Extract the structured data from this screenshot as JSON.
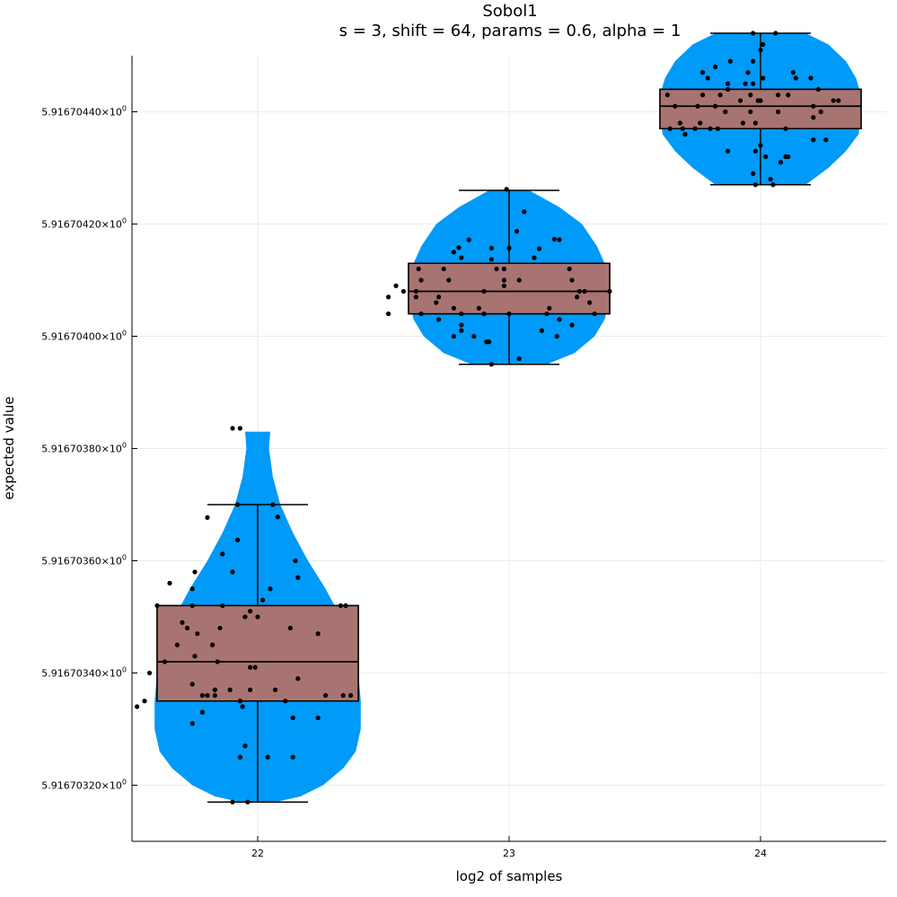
{
  "chart_data": {
    "type": "violin-box-scatter",
    "title": "Sobol1",
    "subtitle": "s = 3, shift = 64, params = 0.6, alpha = 1",
    "xlabel": "log2 of samples",
    "ylabel": "expected value",
    "x_ticks": [
      "22",
      "23",
      "24"
    ],
    "xlim": [
      21.5,
      24.5
    ],
    "y_ticks": [
      {
        "value": 5.9167032,
        "mantissa": "5.91670320",
        "suffix": "×10",
        "exp": "0"
      },
      {
        "value": 5.9167034,
        "mantissa": "5.91670340",
        "suffix": "×10",
        "exp": "0"
      },
      {
        "value": 5.9167036,
        "mantissa": "5.91670360",
        "suffix": "×10",
        "exp": "0"
      },
      {
        "value": 5.9167038,
        "mantissa": "5.91670380",
        "suffix": "×10",
        "exp": "0"
      },
      {
        "value": 5.916704,
        "mantissa": "5.91670400",
        "suffix": "×10",
        "exp": "0"
      },
      {
        "value": 5.9167042,
        "mantissa": "5.91670420",
        "suffix": "×10",
        "exp": "0"
      },
      {
        "value": 5.9167044,
        "mantissa": "5.91670440",
        "suffix": "×10",
        "exp": "0"
      }
    ],
    "ylim": [
      5.9167031,
      5.9167045
    ],
    "grid": true,
    "legend": "none",
    "colors": {
      "violin": "#009af9",
      "box": "#e26f46",
      "box_overlap": "#a87471",
      "points": "#000000",
      "lines": "#000000"
    },
    "groups": [
      {
        "x": 22,
        "box": {
          "whisker_low": 5.91670317,
          "q1": 5.91670335,
          "median": 5.91670342,
          "q3": 5.91670352,
          "whisker_high": 5.9167037
        },
        "violin": [
          [
            5.91670317,
            0.07
          ],
          [
            5.91670318,
            0.17
          ],
          [
            5.9167032,
            0.26
          ],
          [
            5.91670323,
            0.34
          ],
          [
            5.91670326,
            0.39
          ],
          [
            5.9167033,
            0.41
          ],
          [
            5.91670335,
            0.41
          ],
          [
            5.9167034,
            0.4
          ],
          [
            5.91670345,
            0.37
          ],
          [
            5.9167035,
            0.33
          ],
          [
            5.91670355,
            0.27
          ],
          [
            5.9167036,
            0.2
          ],
          [
            5.91670365,
            0.14
          ],
          [
            5.9167037,
            0.09
          ],
          [
            5.91670375,
            0.06
          ],
          [
            5.9167038,
            0.045
          ],
          [
            5.91670383,
            0.05
          ]
        ],
        "points": [
          [
            21.9,
            5.916703836
          ],
          [
            21.93,
            5.916703836
          ],
          [
            21.92,
            5.9167037
          ],
          [
            22.06,
            5.9167037
          ],
          [
            21.8,
            5.916703677
          ],
          [
            22.08,
            5.916703678
          ],
          [
            21.92,
            5.916703637
          ],
          [
            21.86,
            5.916703612
          ],
          [
            22.15,
            5.9167036
          ],
          [
            21.75,
            5.91670358
          ],
          [
            21.9,
            5.91670358
          ],
          [
            22.16,
            5.91670357
          ],
          [
            21.65,
            5.91670356
          ],
          [
            21.74,
            5.91670355
          ],
          [
            22.05,
            5.91670355
          ],
          [
            22.02,
            5.91670353
          ],
          [
            21.86,
            5.91670352
          ],
          [
            21.6,
            5.91670352
          ],
          [
            21.74,
            5.91670352
          ],
          [
            22.33,
            5.91670352
          ],
          [
            22.35,
            5.91670352
          ],
          [
            21.97,
            5.91670351
          ],
          [
            21.7,
            5.91670349
          ],
          [
            22.0,
            5.9167035
          ],
          [
            21.95,
            5.9167035
          ],
          [
            21.85,
            5.91670348
          ],
          [
            22.13,
            5.91670348
          ],
          [
            21.76,
            5.91670347
          ],
          [
            22.24,
            5.91670347
          ],
          [
            21.72,
            5.91670348
          ],
          [
            21.82,
            5.91670345
          ],
          [
            21.68,
            5.91670345
          ],
          [
            21.75,
            5.91670343
          ],
          [
            21.63,
            5.91670342
          ],
          [
            21.84,
            5.91670342
          ],
          [
            21.97,
            5.91670341
          ],
          [
            21.99,
            5.91670341
          ],
          [
            21.57,
            5.9167034
          ],
          [
            22.07,
            5.91670337
          ],
          [
            22.16,
            5.91670339
          ],
          [
            21.74,
            5.91670338
          ],
          [
            21.89,
            5.91670337
          ],
          [
            21.97,
            5.91670337
          ],
          [
            21.83,
            5.91670337
          ],
          [
            21.8,
            5.91670336
          ],
          [
            22.34,
            5.91670336
          ],
          [
            22.37,
            5.91670336
          ],
          [
            22.27,
            5.91670336
          ],
          [
            21.83,
            5.91670336
          ],
          [
            21.93,
            5.91670335
          ],
          [
            21.78,
            5.91670336
          ],
          [
            22.11,
            5.91670335
          ],
          [
            21.52,
            5.91670334
          ],
          [
            21.55,
            5.91670335
          ],
          [
            21.78,
            5.91670333
          ],
          [
            21.94,
            5.91670334
          ],
          [
            22.14,
            5.91670332
          ],
          [
            22.24,
            5.91670332
          ],
          [
            21.74,
            5.91670331
          ],
          [
            21.95,
            5.91670327
          ],
          [
            21.93,
            5.91670325
          ],
          [
            22.04,
            5.91670325
          ],
          [
            22.14,
            5.91670325
          ],
          [
            21.9,
            5.91670317
          ],
          [
            21.96,
            5.91670317
          ]
        ]
      },
      {
        "x": 23,
        "box": {
          "whisker_low": 5.91670395,
          "q1": 5.91670404,
          "median": 5.91670408,
          "q3": 5.91670413,
          "whisker_high": 5.91670426
        },
        "violin": [
          [
            5.91670395,
            0.15
          ],
          [
            5.91670397,
            0.26
          ],
          [
            5.916704,
            0.34
          ],
          [
            5.91670403,
            0.38
          ],
          [
            5.91670405,
            0.39
          ],
          [
            5.91670408,
            0.4
          ],
          [
            5.9167041,
            0.39
          ],
          [
            5.91670413,
            0.38
          ],
          [
            5.91670416,
            0.35
          ],
          [
            5.9167042,
            0.29
          ],
          [
            5.91670423,
            0.2
          ],
          [
            5.91670426,
            0.08
          ]
        ],
        "points": [
          [
            22.99,
            5.916704262
          ],
          [
            23.06,
            5.916704222
          ],
          [
            23.03,
            5.916704187
          ],
          [
            22.84,
            5.916704172
          ],
          [
            23.18,
            5.916704173
          ],
          [
            23.2,
            5.916704172
          ],
          [
            22.8,
            5.916704158
          ],
          [
            23.12,
            5.916704156
          ],
          [
            23.0,
            5.916704157
          ],
          [
            22.93,
            5.916704157
          ],
          [
            22.78,
            5.91670415
          ],
          [
            23.1,
            5.91670414
          ],
          [
            22.81,
            5.91670414
          ],
          [
            22.93,
            5.916704137
          ],
          [
            22.95,
            5.91670412
          ],
          [
            22.74,
            5.91670412
          ],
          [
            22.98,
            5.91670412
          ],
          [
            22.64,
            5.91670412
          ],
          [
            22.98,
            5.9167041
          ],
          [
            23.24,
            5.91670412
          ],
          [
            23.25,
            5.9167041
          ],
          [
            22.65,
            5.9167041
          ],
          [
            23.04,
            5.9167041
          ],
          [
            22.55,
            5.91670409
          ],
          [
            22.76,
            5.9167041
          ],
          [
            22.98,
            5.91670409
          ],
          [
            22.9,
            5.91670408
          ],
          [
            22.72,
            5.91670407
          ],
          [
            22.58,
            5.91670408
          ],
          [
            23.3,
            5.91670408
          ],
          [
            23.4,
            5.91670408
          ],
          [
            23.28,
            5.91670408
          ],
          [
            22.63,
            5.91670408
          ],
          [
            22.71,
            5.91670406
          ],
          [
            22.63,
            5.91670407
          ],
          [
            22.52,
            5.91670407
          ],
          [
            23.32,
            5.91670406
          ],
          [
            23.27,
            5.91670407
          ],
          [
            22.88,
            5.91670405
          ],
          [
            22.78,
            5.91670405
          ],
          [
            23.16,
            5.91670405
          ],
          [
            22.72,
            5.91670403
          ],
          [
            23.0,
            5.91670404
          ],
          [
            23.15,
            5.91670404
          ],
          [
            22.9,
            5.91670404
          ],
          [
            22.81,
            5.91670404
          ],
          [
            23.34,
            5.91670404
          ],
          [
            23.2,
            5.91670403
          ],
          [
            22.65,
            5.91670404
          ],
          [
            22.52,
            5.91670404
          ],
          [
            22.81,
            5.91670402
          ],
          [
            23.25,
            5.91670402
          ],
          [
            22.81,
            5.91670401
          ],
          [
            23.13,
            5.91670401
          ],
          [
            22.86,
            5.916704
          ],
          [
            23.19,
            5.916704
          ],
          [
            22.78,
            5.916704
          ],
          [
            22.92,
            5.91670399
          ],
          [
            22.91,
            5.91670399
          ],
          [
            23.04,
            5.91670396
          ],
          [
            22.93,
            5.91670395
          ]
        ]
      },
      {
        "x": 24,
        "box": {
          "whisker_low": 5.91670427,
          "q1": 5.91670437,
          "median": 5.91670441,
          "q3": 5.91670444,
          "whisker_high": 5.91670454
        },
        "violin": [
          [
            5.91670427,
            0.18
          ],
          [
            5.9167043,
            0.27
          ],
          [
            5.91670433,
            0.34
          ],
          [
            5.91670436,
            0.39
          ],
          [
            5.9167044,
            0.4
          ],
          [
            5.91670443,
            0.4
          ],
          [
            5.91670446,
            0.38
          ],
          [
            5.91670449,
            0.34
          ],
          [
            5.91670452,
            0.27
          ],
          [
            5.91670454,
            0.18
          ]
        ],
        "points": [
          [
            23.97,
            5.91670454
          ],
          [
            24.06,
            5.91670454
          ],
          [
            24.01,
            5.91670452
          ],
          [
            24.0,
            5.91670451
          ],
          [
            23.88,
            5.91670449
          ],
          [
            23.97,
            5.91670449
          ],
          [
            23.82,
            5.91670448
          ],
          [
            23.95,
            5.91670447
          ],
          [
            24.13,
            5.91670447
          ],
          [
            23.77,
            5.91670447
          ],
          [
            23.79,
            5.91670446
          ],
          [
            24.2,
            5.91670446
          ],
          [
            24.14,
            5.91670446
          ],
          [
            24.01,
            5.91670446
          ],
          [
            23.97,
            5.91670445
          ],
          [
            23.94,
            5.91670445
          ],
          [
            23.87,
            5.91670445
          ],
          [
            23.87,
            5.91670444
          ],
          [
            24.23,
            5.91670444
          ],
          [
            23.96,
            5.91670443
          ],
          [
            23.77,
            5.91670443
          ],
          [
            23.84,
            5.91670443
          ],
          [
            24.07,
            5.91670443
          ],
          [
            24.11,
            5.91670443
          ],
          [
            23.63,
            5.91670443
          ],
          [
            24.31,
            5.91670442
          ],
          [
            24.29,
            5.91670442
          ],
          [
            24.0,
            5.91670442
          ],
          [
            23.92,
            5.91670442
          ],
          [
            23.99,
            5.91670442
          ],
          [
            24.21,
            5.91670441
          ],
          [
            23.66,
            5.91670441
          ],
          [
            23.82,
            5.91670441
          ],
          [
            23.75,
            5.91670441
          ],
          [
            24.24,
            5.9167044
          ],
          [
            24.07,
            5.9167044
          ],
          [
            23.86,
            5.9167044
          ],
          [
            23.96,
            5.9167044
          ],
          [
            23.93,
            5.91670438
          ],
          [
            23.98,
            5.91670438
          ],
          [
            24.21,
            5.91670439
          ],
          [
            23.68,
            5.91670438
          ],
          [
            23.76,
            5.91670438
          ],
          [
            23.8,
            5.91670437
          ],
          [
            23.74,
            5.91670437
          ],
          [
            23.83,
            5.91670437
          ],
          [
            24.1,
            5.91670437
          ],
          [
            23.64,
            5.91670437
          ],
          [
            23.69,
            5.91670437
          ],
          [
            23.7,
            5.91670436
          ],
          [
            24.21,
            5.91670435
          ],
          [
            24.26,
            5.91670435
          ],
          [
            24.0,
            5.91670434
          ],
          [
            23.98,
            5.91670433
          ],
          [
            23.87,
            5.91670433
          ],
          [
            24.1,
            5.91670432
          ],
          [
            24.02,
            5.91670432
          ],
          [
            24.11,
            5.91670432
          ],
          [
            24.08,
            5.91670431
          ],
          [
            23.97,
            5.91670429
          ],
          [
            24.04,
            5.91670428
          ],
          [
            24.05,
            5.91670427
          ],
          [
            23.98,
            5.91670427
          ]
        ]
      }
    ]
  }
}
